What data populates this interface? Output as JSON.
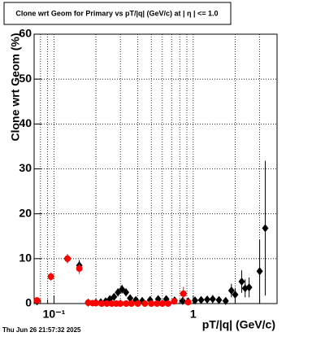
{
  "chart_data": {
    "type": "scatter",
    "title": "Clone wrt Geom for Primary vs pT/|q| (GeV/c) at |  η  | <= 1.0",
    "xlabel": "pT/|q| (GeV/c)",
    "ylabel": "Clone wrt Geom (%)",
    "footer": "Thu Jun 26 21:57:32 2025",
    "xlog": true,
    "grid": true,
    "xlim": [
      0.072,
      4
    ],
    "ylim": [
      0,
      60
    ],
    "xticks": [
      {
        "value": 0.1,
        "label": "10⁻¹"
      },
      1
    ],
    "xminorticks": [
      0.08,
      0.09,
      0.2,
      0.3,
      0.4,
      0.5,
      0.6,
      0.7,
      0.8,
      0.9,
      2,
      3
    ],
    "yticks": [
      0,
      10,
      20,
      30,
      40,
      50,
      60
    ],
    "series": [
      {
        "name": "black",
        "color": "#000000",
        "marker": "diamond",
        "x": [
          0.0755,
          0.095,
          0.125,
          0.152,
          0.176,
          0.2,
          0.217,
          0.235,
          0.252,
          0.27,
          0.288,
          0.308,
          0.329,
          0.352,
          0.387,
          0.43,
          0.49,
          0.56,
          0.64,
          0.735,
          0.84,
          0.92,
          1.03,
          1.14,
          1.26,
          1.38,
          1.53,
          1.71,
          1.88,
          2.0,
          2.23,
          2.36,
          2.52,
          3.0,
          3.29
        ],
        "values": [
          0.5,
          6,
          10,
          8.5,
          0.2,
          0.2,
          0.3,
          0.5,
          1.0,
          1.5,
          2.5,
          3.2,
          2.5,
          1.2,
          0.8,
          0.6,
          0.8,
          1.0,
          1.0,
          0.7,
          0.6,
          0.5,
          0.7,
          0.8,
          0.9,
          1.0,
          0.8,
          0.6,
          2.9,
          2.0,
          4.9,
          3.4,
          3.6,
          7.2,
          16.8
        ],
        "errors": [
          0.5,
          0.8,
          1.0,
          1.2,
          0.3,
          0.3,
          0.3,
          0.4,
          0.6,
          0.7,
          0.9,
          1.0,
          0.9,
          0.7,
          0.5,
          0.4,
          0.5,
          0.6,
          0.6,
          0.5,
          0.5,
          0.5,
          0.6,
          0.7,
          0.8,
          0.9,
          0.8,
          0.7,
          1.5,
          1.5,
          2.5,
          2.0,
          2.2,
          7,
          15
        ]
      },
      {
        "name": "red",
        "color": "#ff0000",
        "marker": "circle",
        "x": [
          0.0755,
          0.095,
          0.125,
          0.152,
          0.176,
          0.19,
          0.2,
          0.22,
          0.24,
          0.26,
          0.28,
          0.3,
          0.33,
          0.36,
          0.4,
          0.45,
          0.5,
          0.55,
          0.6,
          0.66,
          0.73,
          0.85,
          0.92
        ],
        "values": [
          0.7,
          6,
          10,
          7.8,
          0.2,
          0.1,
          0.1,
          0,
          0,
          0,
          0,
          0,
          0,
          0,
          0,
          0,
          0,
          0,
          0,
          0,
          0.5,
          2.2,
          0.3
        ],
        "errors": [
          0.5,
          0.8,
          1.0,
          1.2,
          0.3,
          0.2,
          0.2,
          0.1,
          0.1,
          0.1,
          0.1,
          0.1,
          0.1,
          0.1,
          0.1,
          0.1,
          0.1,
          0.1,
          0.1,
          0.1,
          0.5,
          1.5,
          0.4
        ]
      }
    ]
  }
}
